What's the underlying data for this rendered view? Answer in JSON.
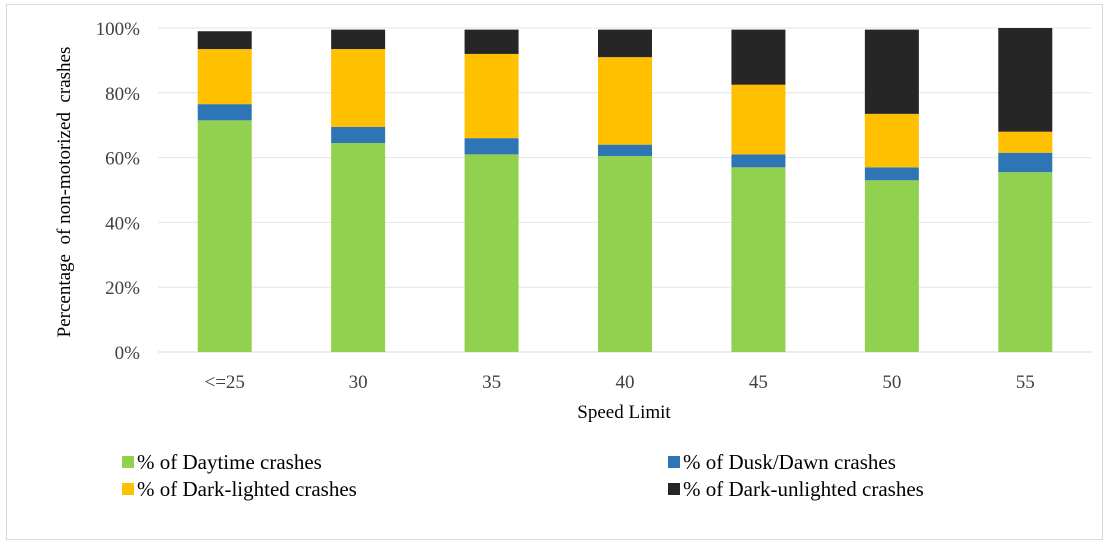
{
  "chart_data": {
    "type": "bar",
    "stacked": true,
    "title": "",
    "xlabel": "Speed Limit",
    "ylabel": "Percentage  of non-motorized  crashes",
    "categories": [
      "<=25",
      "30",
      "35",
      "40",
      "45",
      "50",
      "55"
    ],
    "ylim": [
      0,
      100
    ],
    "yticks": [
      "0%",
      "20%",
      "40%",
      "60%",
      "80%",
      "100%"
    ],
    "ytick_values": [
      0,
      20,
      40,
      60,
      80,
      100
    ],
    "grid": true,
    "legend_position": "bottom",
    "series": [
      {
        "name": "% of Daytime crashes",
        "color": "#92d050",
        "values": [
          71.5,
          64.5,
          61,
          60.5,
          57,
          53,
          55.5
        ]
      },
      {
        "name": "% of Dusk/Dawn crashes",
        "color": "#2e75b6",
        "values": [
          5,
          5,
          5,
          3.5,
          4,
          4,
          6
        ]
      },
      {
        "name": "% of Dark-lighted crashes",
        "color": "#ffc000",
        "values": [
          17,
          24,
          26,
          27,
          21.5,
          16.5,
          6.5
        ]
      },
      {
        "name": "% of Dark-unlighted crashes",
        "color": "#262626",
        "values": [
          5.5,
          6,
          7.5,
          8.5,
          17,
          26,
          32
        ]
      }
    ]
  }
}
